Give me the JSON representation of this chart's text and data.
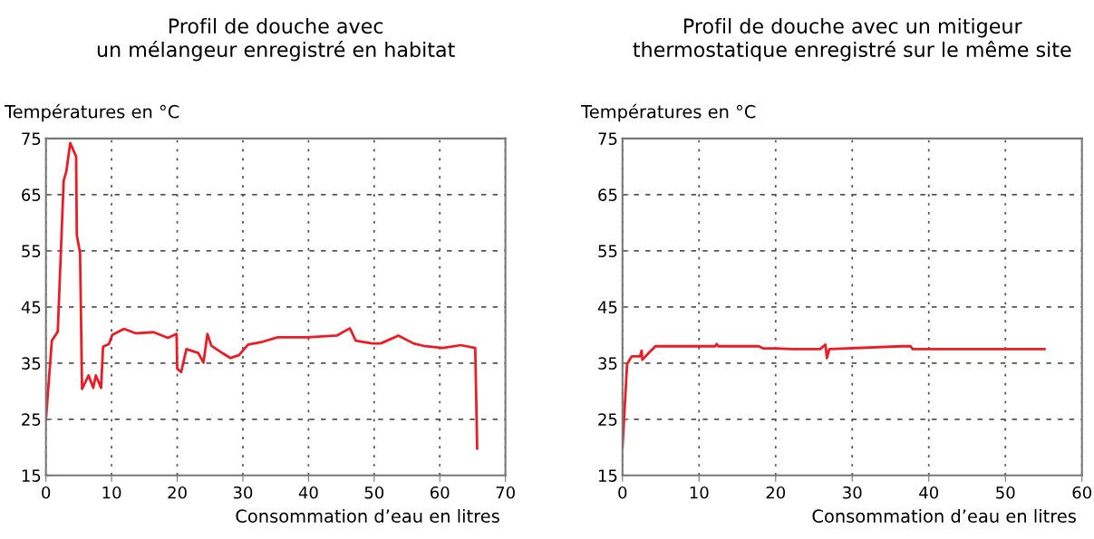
{
  "chart_data": [
    {
      "type": "line",
      "title": "Profil de douche avec\nun mélangeur enregistré en habitat",
      "ylabel": "Températures en °C",
      "xlabel": "Consommation d’eau en litres",
      "xlim": [
        0,
        70
      ],
      "xticks": [
        0,
        10,
        20,
        30,
        40,
        50,
        60,
        70
      ],
      "ylim": [
        15,
        75
      ],
      "yticks": [
        15,
        25,
        35,
        45,
        55,
        65,
        75
      ],
      "grid": true,
      "marker": "none",
      "line_style": "solid",
      "series": [
        {
          "color": "#ed1c24",
          "x": [
            0,
            0.9,
            1.8,
            2.7,
            3.1,
            3.7,
            4.6,
            4.7,
            5.2,
            5.5,
            6.5,
            7.2,
            7.6,
            8.4,
            8.7,
            9.6,
            10.1,
            11.9,
            13.7,
            16.4,
            18.6,
            19.9,
            20.0,
            20.6,
            21.4,
            23.2,
            24.0,
            24.6,
            25.2,
            27.0,
            28.1,
            29.4,
            30.8,
            33.0,
            35.3,
            39.8,
            44.3,
            46.3,
            47.2,
            49.7,
            51.0,
            53.7,
            56.0,
            57.8,
            60.5,
            63.2,
            65.4,
            65.7
          ],
          "values": [
            25.0,
            39.0,
            40.6,
            67.5,
            69.1,
            74.2,
            71.8,
            57.8,
            54.6,
            30.4,
            32.8,
            30.6,
            32.8,
            30.6,
            37.9,
            38.4,
            40.0,
            41.1,
            40.3,
            40.5,
            39.5,
            40.2,
            34.0,
            33.4,
            37.5,
            36.8,
            35.1,
            40.2,
            38.1,
            36.7,
            35.9,
            36.4,
            38.3,
            38.8,
            39.6,
            39.6,
            39.9,
            41.2,
            39.0,
            38.5,
            38.5,
            39.9,
            38.5,
            38.0,
            37.7,
            38.2,
            37.7,
            19.8
          ]
        }
      ]
    },
    {
      "type": "line",
      "title": "Profil de douche avec un mitigeur\nthermostatique enregistré sur le même site",
      "ylabel": "Températures en °C",
      "xlabel": "Consommation d’eau en litres",
      "xlim": [
        0,
        60
      ],
      "xticks": [
        0,
        10,
        20,
        30,
        40,
        50,
        60
      ],
      "ylim": [
        15,
        75
      ],
      "yticks": [
        15,
        25,
        35,
        45,
        55,
        65,
        75
      ],
      "grid": true,
      "marker": "none",
      "line_style": "solid",
      "series": [
        {
          "color": "#ed1c24",
          "x": [
            0,
            0.6,
            1.2,
            2.3,
            2.5,
            2.6,
            3.5,
            4.3,
            12.1,
            12.3,
            12.5,
            17.8,
            18.4,
            20.0,
            22.3,
            25.8,
            26.5,
            26.7,
            27.0,
            36.4,
            37.6,
            37.9,
            55.1
          ],
          "values": [
            20.0,
            34.8,
            36.2,
            36.2,
            37.2,
            35.6,
            36.9,
            38.0,
            38.0,
            38.4,
            38.0,
            38.0,
            37.6,
            37.6,
            37.5,
            37.5,
            38.3,
            35.9,
            37.5,
            38.0,
            38.0,
            37.5,
            37.5
          ]
        }
      ]
    }
  ]
}
